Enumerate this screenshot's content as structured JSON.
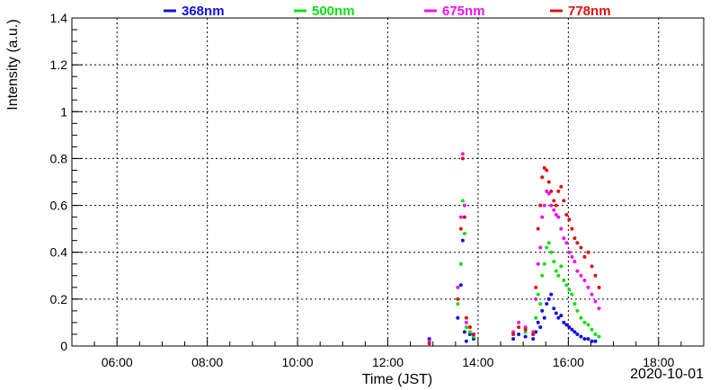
{
  "chart_data": {
    "type": "scatter",
    "title": "",
    "xlabel": "Time (JST)",
    "ylabel": "Intensity (a.u.)",
    "date_label": "2020-10-01",
    "x_unit": "hours (JST clock time)",
    "xlim": [
      5.0,
      19.0
    ],
    "ylim": [
      0,
      1.4
    ],
    "x_ticks": [
      {
        "value": 6,
        "label": "06:00"
      },
      {
        "value": 8,
        "label": "08:00"
      },
      {
        "value": 10,
        "label": "10:00"
      },
      {
        "value": 12,
        "label": "12:00"
      },
      {
        "value": 14,
        "label": "14:00"
      },
      {
        "value": 16,
        "label": "16:00"
      },
      {
        "value": 18,
        "label": "18:00"
      }
    ],
    "y_ticks": [
      {
        "value": 0,
        "label": "0"
      },
      {
        "value": 0.2,
        "label": "0.2"
      },
      {
        "value": 0.4,
        "label": "0.4"
      },
      {
        "value": 0.6,
        "label": "0.6"
      },
      {
        "value": 0.8,
        "label": "0.8"
      },
      {
        "value": 1.0,
        "label": "1"
      },
      {
        "value": 1.2,
        "label": "1.2"
      },
      {
        "value": 1.4,
        "label": "1.4"
      }
    ],
    "grid": true,
    "legend_position": "top",
    "series": [
      {
        "name": "368nm",
        "color": "#1010e0",
        "points": [
          [
            12.92,
            0.03
          ],
          [
            13.55,
            0.12
          ],
          [
            13.62,
            0.26
          ],
          [
            13.66,
            0.45
          ],
          [
            13.7,
            0.06
          ],
          [
            13.74,
            0.02
          ],
          [
            13.82,
            0.05
          ],
          [
            13.9,
            0.03
          ],
          [
            14.78,
            0.03
          ],
          [
            14.9,
            0.05
          ],
          [
            15.05,
            0.04
          ],
          [
            15.22,
            0.03
          ],
          [
            15.28,
            0.06
          ],
          [
            15.33,
            0.1
          ],
          [
            15.38,
            0.08
          ],
          [
            15.42,
            0.15
          ],
          [
            15.47,
            0.12
          ],
          [
            15.52,
            0.18
          ],
          [
            15.57,
            0.2
          ],
          [
            15.62,
            0.22
          ],
          [
            15.68,
            0.16
          ],
          [
            15.73,
            0.14
          ],
          [
            15.78,
            0.12
          ],
          [
            15.84,
            0.13
          ],
          [
            15.9,
            0.1
          ],
          [
            15.96,
            0.09
          ],
          [
            16.02,
            0.08
          ],
          [
            16.08,
            0.07
          ],
          [
            16.14,
            0.06
          ],
          [
            16.2,
            0.05
          ],
          [
            16.28,
            0.04
          ],
          [
            16.36,
            0.03
          ],
          [
            16.44,
            0.03
          ],
          [
            16.52,
            0.02
          ],
          [
            16.6,
            0.02
          ]
        ]
      },
      {
        "name": "500nm",
        "color": "#10e010",
        "points": [
          [
            12.92,
            0.02
          ],
          [
            13.55,
            0.18
          ],
          [
            13.62,
            0.35
          ],
          [
            13.66,
            0.62
          ],
          [
            13.7,
            0.48
          ],
          [
            13.74,
            0.08
          ],
          [
            13.82,
            0.06
          ],
          [
            13.9,
            0.04
          ],
          [
            14.78,
            0.05
          ],
          [
            14.9,
            0.08
          ],
          [
            15.05,
            0.06
          ],
          [
            15.22,
            0.05
          ],
          [
            15.28,
            0.12
          ],
          [
            15.33,
            0.22
          ],
          [
            15.38,
            0.18
          ],
          [
            15.42,
            0.3
          ],
          [
            15.47,
            0.35
          ],
          [
            15.52,
            0.42
          ],
          [
            15.57,
            0.44
          ],
          [
            15.62,
            0.4
          ],
          [
            15.68,
            0.36
          ],
          [
            15.73,
            0.32
          ],
          [
            15.78,
            0.3
          ],
          [
            15.84,
            0.34
          ],
          [
            15.9,
            0.28
          ],
          [
            15.96,
            0.26
          ],
          [
            16.02,
            0.24
          ],
          [
            16.08,
            0.22
          ],
          [
            16.14,
            0.18
          ],
          [
            16.2,
            0.15
          ],
          [
            16.28,
            0.12
          ],
          [
            16.36,
            0.1
          ],
          [
            16.44,
            0.09
          ],
          [
            16.52,
            0.07
          ],
          [
            16.6,
            0.05
          ],
          [
            16.68,
            0.04
          ]
        ]
      },
      {
        "name": "675nm",
        "color": "#f010f0",
        "points": [
          [
            12.92,
            0.02
          ],
          [
            13.55,
            0.25
          ],
          [
            13.62,
            0.55
          ],
          [
            13.66,
            0.82
          ],
          [
            13.7,
            0.6
          ],
          [
            13.74,
            0.1
          ],
          [
            13.82,
            0.08
          ],
          [
            13.9,
            0.05
          ],
          [
            14.78,
            0.06
          ],
          [
            14.9,
            0.1
          ],
          [
            15.05,
            0.08
          ],
          [
            15.22,
            0.06
          ],
          [
            15.28,
            0.2
          ],
          [
            15.33,
            0.35
          ],
          [
            15.38,
            0.42
          ],
          [
            15.42,
            0.55
          ],
          [
            15.47,
            0.6
          ],
          [
            15.52,
            0.66
          ],
          [
            15.57,
            0.65
          ],
          [
            15.62,
            0.6
          ],
          [
            15.68,
            0.58
          ],
          [
            15.73,
            0.56
          ],
          [
            15.78,
            0.55
          ],
          [
            15.84,
            0.5
          ],
          [
            15.9,
            0.46
          ],
          [
            15.96,
            0.44
          ],
          [
            16.02,
            0.4
          ],
          [
            16.08,
            0.38
          ],
          [
            16.14,
            0.36
          ],
          [
            16.2,
            0.32
          ],
          [
            16.28,
            0.3
          ],
          [
            16.36,
            0.28
          ],
          [
            16.44,
            0.25
          ],
          [
            16.52,
            0.22
          ],
          [
            16.6,
            0.19
          ],
          [
            16.68,
            0.16
          ]
        ]
      },
      {
        "name": "778nm",
        "color": "#e01010",
        "points": [
          [
            12.92,
            0.01
          ],
          [
            13.55,
            0.2
          ],
          [
            13.62,
            0.5
          ],
          [
            13.66,
            0.8
          ],
          [
            13.7,
            0.55
          ],
          [
            13.74,
            0.12
          ],
          [
            13.82,
            0.08
          ],
          [
            13.9,
            0.05
          ],
          [
            14.78,
            0.05
          ],
          [
            14.9,
            0.08
          ],
          [
            15.05,
            0.07
          ],
          [
            15.22,
            0.05
          ],
          [
            15.28,
            0.25
          ],
          [
            15.33,
            0.5
          ],
          [
            15.38,
            0.6
          ],
          [
            15.42,
            0.72
          ],
          [
            15.47,
            0.76
          ],
          [
            15.52,
            0.75
          ],
          [
            15.57,
            0.7
          ],
          [
            15.62,
            0.66
          ],
          [
            15.68,
            0.62
          ],
          [
            15.73,
            0.6
          ],
          [
            15.78,
            0.66
          ],
          [
            15.84,
            0.68
          ],
          [
            15.9,
            0.62
          ],
          [
            15.96,
            0.56
          ],
          [
            16.02,
            0.54
          ],
          [
            16.08,
            0.5
          ],
          [
            16.14,
            0.46
          ],
          [
            16.2,
            0.44
          ],
          [
            16.28,
            0.42
          ],
          [
            16.36,
            0.38
          ],
          [
            16.44,
            0.4
          ],
          [
            16.52,
            0.34
          ],
          [
            16.6,
            0.3
          ],
          [
            16.68,
            0.25
          ]
        ]
      }
    ]
  }
}
